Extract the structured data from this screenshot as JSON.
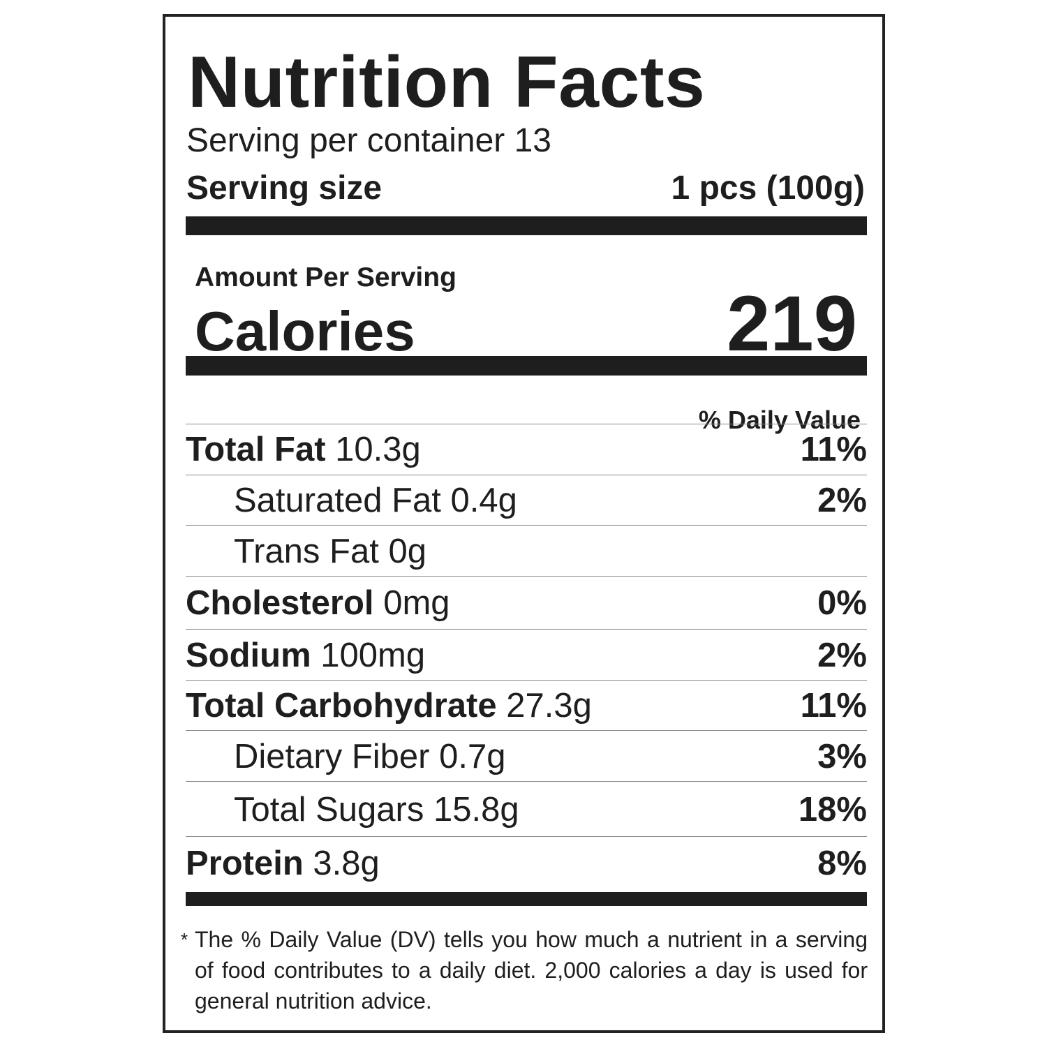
{
  "title": "Nutrition Facts",
  "servings_per_container": "Serving per container 13",
  "serving_size": {
    "label": "Serving size",
    "value": "1 pcs (100g)"
  },
  "amount_per_serving": "Amount Per Serving",
  "calories": {
    "label": "Calories",
    "value": "219"
  },
  "daily_value_header": "% Daily Value",
  "nutrients": [
    {
      "name": "Total Fat",
      "amount": "10.3g",
      "dv": "11%"
    },
    {
      "name": "Saturated Fat",
      "amount": "0.4g",
      "dv": "2%"
    },
    {
      "name": "Trans Fat",
      "amount": "0g",
      "dv": ""
    },
    {
      "name": "Cholesterol",
      "amount": "0mg",
      "dv": "0%"
    },
    {
      "name": "Sodium",
      "amount": "100mg",
      "dv": "2%"
    },
    {
      "name": "Total Carbohydrate",
      "amount": "27.3g",
      "dv": "11%"
    },
    {
      "name": "Dietary Fiber",
      "amount": "0.7g",
      "dv": "3%"
    },
    {
      "name": "Total Sugars",
      "amount": "15.8g",
      "dv": "18%"
    },
    {
      "name": "Protein",
      "amount": "3.8g",
      "dv": "8%"
    }
  ],
  "footnote": {
    "marker": "*",
    "text": "The % Daily Value (DV) tells you how much a nutrient in a serving of food contributes to a daily diet. 2,000 calories a day is used for general nutrition advice."
  }
}
